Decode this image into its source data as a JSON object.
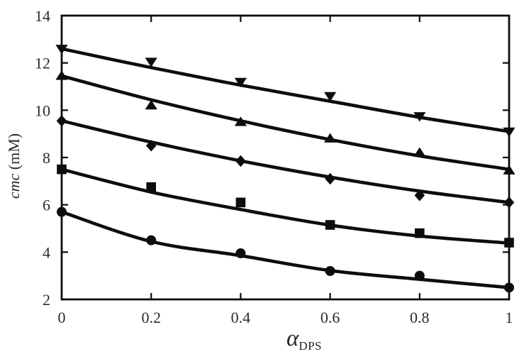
{
  "figure": {
    "background": "#ffffff",
    "ink": "#0d0d0d",
    "text_color": "#2b2b2b"
  },
  "axes": {
    "y_label_italic": "cmc",
    "y_label_unit": " (mM)",
    "x_label_symbol": "α",
    "x_label_subscript": "DPS",
    "x_tick_labels": [
      "0",
      "0.2",
      "0.4",
      "0.6",
      "0.8",
      "1"
    ],
    "y_tick_labels": [
      "2",
      "4",
      "6",
      "8",
      "10",
      "12",
      "14"
    ]
  },
  "chart_data": {
    "type": "scatter",
    "title": "",
    "xlabel": "α_DPS",
    "ylabel": "cmc (mM)",
    "xlim": [
      0,
      1
    ],
    "ylim": [
      2,
      14
    ],
    "xticks": [
      0,
      0.2,
      0.4,
      0.6,
      0.8,
      1
    ],
    "yticks": [
      2,
      4,
      6,
      8,
      10,
      12,
      14
    ],
    "grid": false,
    "legend": false,
    "marker_color": "#0d0d0d",
    "x": [
      0,
      0.2,
      0.4,
      0.6,
      0.8,
      1
    ],
    "series": [
      {
        "name": "series-triangle-down",
        "marker": "triangle-down",
        "values": [
          12.6,
          12.05,
          11.2,
          10.6,
          9.75,
          9.1
        ],
        "trend": [
          12.6,
          11.8,
          11.06,
          10.38,
          9.7,
          9.1
        ]
      },
      {
        "name": "series-triangle-up",
        "marker": "triangle-up",
        "values": [
          11.45,
          10.2,
          9.5,
          8.8,
          8.2,
          7.45
        ],
        "trend": [
          11.45,
          10.44,
          9.55,
          8.76,
          8.07,
          7.5
        ]
      },
      {
        "name": "series-diamond",
        "marker": "diamond",
        "values": [
          9.55,
          8.5,
          7.85,
          7.1,
          6.4,
          6.1
        ],
        "trend": [
          9.55,
          8.65,
          7.86,
          7.17,
          6.58,
          6.1
        ]
      },
      {
        "name": "series-square",
        "marker": "square",
        "values": [
          7.5,
          6.75,
          6.1,
          5.15,
          4.8,
          4.4
        ],
        "trend": [
          7.5,
          6.54,
          5.8,
          5.14,
          4.68,
          4.38
        ]
      },
      {
        "name": "series-circle",
        "marker": "circle",
        "values": [
          5.7,
          4.5,
          3.95,
          3.2,
          3.0,
          2.5
        ],
        "trend": [
          5.7,
          4.45,
          3.85,
          3.22,
          2.85,
          2.5
        ]
      }
    ]
  }
}
